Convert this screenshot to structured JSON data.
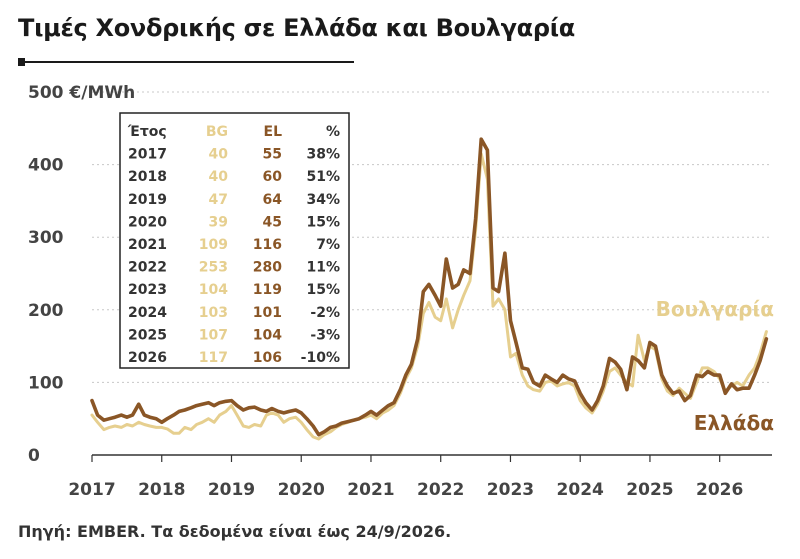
{
  "title": "Τιμές Χονδρικής σε Ελλάδα και Βουλγαρία",
  "source": "Πηγή: EMBER. Τα δεδομένα είναι έως 24/9/2026.",
  "colors": {
    "bg": "#e6cf8f",
    "el": "#8a5626",
    "grid": "#c8c8c8",
    "text": "#333333"
  },
  "chart_data": {
    "type": "line",
    "title": "Τιμές Χονδρικής σε Ελλάδα και Βουλγαρία",
    "ylabel": "€/MWh",
    "unit_label": "€/MWh",
    "ylim": [
      0,
      500
    ],
    "yticks": [
      0,
      100,
      200,
      300,
      400,
      500
    ],
    "xlim": [
      2017,
      2026.75
    ],
    "xticks": [
      "2017",
      "2018",
      "2019",
      "2020",
      "2021",
      "2022",
      "2023",
      "2024",
      "2025",
      "2026"
    ],
    "series": [
      {
        "name": "Βουλγαρία",
        "color": "#e6cf8f",
        "points": [
          [
            2017.0,
            55
          ],
          [
            2017.08,
            45
          ],
          [
            2017.17,
            35
          ],
          [
            2017.25,
            38
          ],
          [
            2017.33,
            40
          ],
          [
            2017.42,
            38
          ],
          [
            2017.5,
            42
          ],
          [
            2017.58,
            40
          ],
          [
            2017.67,
            45
          ],
          [
            2017.75,
            42
          ],
          [
            2017.83,
            40
          ],
          [
            2017.92,
            38
          ],
          [
            2018.0,
            38
          ],
          [
            2018.08,
            36
          ],
          [
            2018.17,
            30
          ],
          [
            2018.25,
            30
          ],
          [
            2018.33,
            38
          ],
          [
            2018.42,
            35
          ],
          [
            2018.5,
            42
          ],
          [
            2018.58,
            45
          ],
          [
            2018.67,
            50
          ],
          [
            2018.75,
            45
          ],
          [
            2018.83,
            55
          ],
          [
            2018.92,
            60
          ],
          [
            2019.0,
            68
          ],
          [
            2019.08,
            55
          ],
          [
            2019.17,
            40
          ],
          [
            2019.25,
            38
          ],
          [
            2019.33,
            42
          ],
          [
            2019.42,
            40
          ],
          [
            2019.5,
            55
          ],
          [
            2019.58,
            58
          ],
          [
            2019.67,
            55
          ],
          [
            2019.75,
            45
          ],
          [
            2019.83,
            50
          ],
          [
            2019.92,
            52
          ],
          [
            2020.0,
            45
          ],
          [
            2020.08,
            35
          ],
          [
            2020.17,
            25
          ],
          [
            2020.25,
            22
          ],
          [
            2020.33,
            28
          ],
          [
            2020.42,
            32
          ],
          [
            2020.5,
            38
          ],
          [
            2020.58,
            42
          ],
          [
            2020.67,
            45
          ],
          [
            2020.75,
            48
          ],
          [
            2020.83,
            50
          ],
          [
            2020.92,
            52
          ],
          [
            2021.0,
            55
          ],
          [
            2021.08,
            50
          ],
          [
            2021.17,
            58
          ],
          [
            2021.25,
            62
          ],
          [
            2021.33,
            68
          ],
          [
            2021.42,
            85
          ],
          [
            2021.5,
            105
          ],
          [
            2021.58,
            120
          ],
          [
            2021.67,
            150
          ],
          [
            2021.75,
            195
          ],
          [
            2021.83,
            210
          ],
          [
            2021.92,
            190
          ],
          [
            2022.0,
            185
          ],
          [
            2022.08,
            215
          ],
          [
            2022.17,
            175
          ],
          [
            2022.25,
            200
          ],
          [
            2022.33,
            220
          ],
          [
            2022.42,
            240
          ],
          [
            2022.5,
            310
          ],
          [
            2022.58,
            415
          ],
          [
            2022.67,
            380
          ],
          [
            2022.75,
            205
          ],
          [
            2022.83,
            215
          ],
          [
            2022.92,
            200
          ],
          [
            2023.0,
            135
          ],
          [
            2023.08,
            140
          ],
          [
            2023.17,
            110
          ],
          [
            2023.25,
            95
          ],
          [
            2023.33,
            90
          ],
          [
            2023.42,
            88
          ],
          [
            2023.5,
            100
          ],
          [
            2023.58,
            102
          ],
          [
            2023.67,
            95
          ],
          [
            2023.75,
            98
          ],
          [
            2023.83,
            100
          ],
          [
            2023.92,
            95
          ],
          [
            2024.0,
            75
          ],
          [
            2024.08,
            65
          ],
          [
            2024.17,
            58
          ],
          [
            2024.25,
            70
          ],
          [
            2024.33,
            88
          ],
          [
            2024.42,
            115
          ],
          [
            2024.5,
            120
          ],
          [
            2024.58,
            110
          ],
          [
            2024.67,
            100
          ],
          [
            2024.75,
            95
          ],
          [
            2024.83,
            165
          ],
          [
            2024.92,
            130
          ],
          [
            2025.0,
            150
          ],
          [
            2025.08,
            145
          ],
          [
            2025.17,
            105
          ],
          [
            2025.25,
            88
          ],
          [
            2025.33,
            82
          ],
          [
            2025.42,
            92
          ],
          [
            2025.5,
            85
          ],
          [
            2025.58,
            78
          ],
          [
            2025.67,
            100
          ],
          [
            2025.75,
            120
          ],
          [
            2025.83,
            120
          ],
          [
            2025.92,
            115
          ],
          [
            2026.0,
            105
          ],
          [
            2026.08,
            88
          ],
          [
            2026.17,
            95
          ],
          [
            2026.25,
            100
          ],
          [
            2026.33,
            95
          ],
          [
            2026.42,
            110
          ],
          [
            2026.5,
            120
          ],
          [
            2026.58,
            140
          ],
          [
            2026.67,
            170
          ]
        ]
      },
      {
        "name": "Ελλάδα",
        "color": "#8a5626",
        "points": [
          [
            2017.0,
            75
          ],
          [
            2017.08,
            55
          ],
          [
            2017.17,
            48
          ],
          [
            2017.25,
            50
          ],
          [
            2017.33,
            52
          ],
          [
            2017.42,
            55
          ],
          [
            2017.5,
            52
          ],
          [
            2017.58,
            55
          ],
          [
            2017.67,
            70
          ],
          [
            2017.75,
            55
          ],
          [
            2017.83,
            52
          ],
          [
            2017.92,
            50
          ],
          [
            2018.0,
            45
          ],
          [
            2018.08,
            50
          ],
          [
            2018.17,
            55
          ],
          [
            2018.25,
            60
          ],
          [
            2018.33,
            62
          ],
          [
            2018.42,
            65
          ],
          [
            2018.5,
            68
          ],
          [
            2018.58,
            70
          ],
          [
            2018.67,
            72
          ],
          [
            2018.75,
            68
          ],
          [
            2018.83,
            72
          ],
          [
            2018.92,
            74
          ],
          [
            2019.0,
            75
          ],
          [
            2019.08,
            68
          ],
          [
            2019.17,
            62
          ],
          [
            2019.25,
            65
          ],
          [
            2019.33,
            66
          ],
          [
            2019.42,
            62
          ],
          [
            2019.5,
            60
          ],
          [
            2019.58,
            64
          ],
          [
            2019.67,
            60
          ],
          [
            2019.75,
            58
          ],
          [
            2019.83,
            60
          ],
          [
            2019.92,
            62
          ],
          [
            2020.0,
            58
          ],
          [
            2020.08,
            50
          ],
          [
            2020.17,
            40
          ],
          [
            2020.25,
            28
          ],
          [
            2020.33,
            32
          ],
          [
            2020.42,
            38
          ],
          [
            2020.5,
            40
          ],
          [
            2020.58,
            44
          ],
          [
            2020.67,
            46
          ],
          [
            2020.75,
            48
          ],
          [
            2020.83,
            50
          ],
          [
            2020.92,
            55
          ],
          [
            2021.0,
            60
          ],
          [
            2021.08,
            55
          ],
          [
            2021.17,
            62
          ],
          [
            2021.25,
            68
          ],
          [
            2021.33,
            72
          ],
          [
            2021.42,
            90
          ],
          [
            2021.5,
            110
          ],
          [
            2021.58,
            125
          ],
          [
            2021.67,
            160
          ],
          [
            2021.75,
            225
          ],
          [
            2021.83,
            235
          ],
          [
            2021.92,
            220
          ],
          [
            2022.0,
            205
          ],
          [
            2022.08,
            270
          ],
          [
            2022.17,
            230
          ],
          [
            2022.25,
            235
          ],
          [
            2022.33,
            255
          ],
          [
            2022.42,
            250
          ],
          [
            2022.5,
            325
          ],
          [
            2022.58,
            435
          ],
          [
            2022.67,
            420
          ],
          [
            2022.75,
            230
          ],
          [
            2022.83,
            225
          ],
          [
            2022.92,
            278
          ],
          [
            2023.0,
            185
          ],
          [
            2023.08,
            155
          ],
          [
            2023.17,
            120
          ],
          [
            2023.25,
            118
          ],
          [
            2023.33,
            100
          ],
          [
            2023.42,
            95
          ],
          [
            2023.5,
            110
          ],
          [
            2023.58,
            105
          ],
          [
            2023.67,
            100
          ],
          [
            2023.75,
            110
          ],
          [
            2023.83,
            105
          ],
          [
            2023.92,
            102
          ],
          [
            2024.0,
            85
          ],
          [
            2024.08,
            72
          ],
          [
            2024.17,
            62
          ],
          [
            2024.25,
            75
          ],
          [
            2024.33,
            95
          ],
          [
            2024.42,
            133
          ],
          [
            2024.5,
            128
          ],
          [
            2024.58,
            118
          ],
          [
            2024.67,
            90
          ],
          [
            2024.75,
            135
          ],
          [
            2024.83,
            130
          ],
          [
            2024.92,
            120
          ],
          [
            2025.0,
            155
          ],
          [
            2025.08,
            150
          ],
          [
            2025.17,
            110
          ],
          [
            2025.25,
            95
          ],
          [
            2025.33,
            85
          ],
          [
            2025.42,
            88
          ],
          [
            2025.5,
            75
          ],
          [
            2025.58,
            82
          ],
          [
            2025.67,
            110
          ],
          [
            2025.75,
            108
          ],
          [
            2025.83,
            115
          ],
          [
            2025.92,
            110
          ],
          [
            2026.0,
            110
          ],
          [
            2026.08,
            85
          ],
          [
            2026.17,
            98
          ],
          [
            2026.25,
            90
          ],
          [
            2026.33,
            92
          ],
          [
            2026.42,
            92
          ],
          [
            2026.5,
            110
          ],
          [
            2026.58,
            130
          ],
          [
            2026.67,
            160
          ]
        ]
      }
    ],
    "annotations": [
      {
        "text": "Βουλγαρία",
        "series": "Βουλγαρία"
      },
      {
        "text": "Ελλάδα",
        "series": "Ελλάδα"
      }
    ],
    "table": {
      "headers": [
        "Έτος",
        "BG",
        "EL",
        "%"
      ],
      "rows": [
        [
          "2017",
          "40",
          "55",
          "38%"
        ],
        [
          "2018",
          "40",
          "60",
          "51%"
        ],
        [
          "2019",
          "47",
          "64",
          "34%"
        ],
        [
          "2020",
          "39",
          "45",
          "15%"
        ],
        [
          "2021",
          "109",
          "116",
          "7%"
        ],
        [
          "2022",
          "253",
          "280",
          "11%"
        ],
        [
          "2023",
          "104",
          "119",
          "15%"
        ],
        [
          "2024",
          "103",
          "101",
          "-2%"
        ],
        [
          "2025",
          "107",
          "104",
          "-3%"
        ],
        [
          "2026",
          "117",
          "106",
          "-10%"
        ]
      ]
    },
    "grid": true,
    "legend": "inline-labels"
  }
}
